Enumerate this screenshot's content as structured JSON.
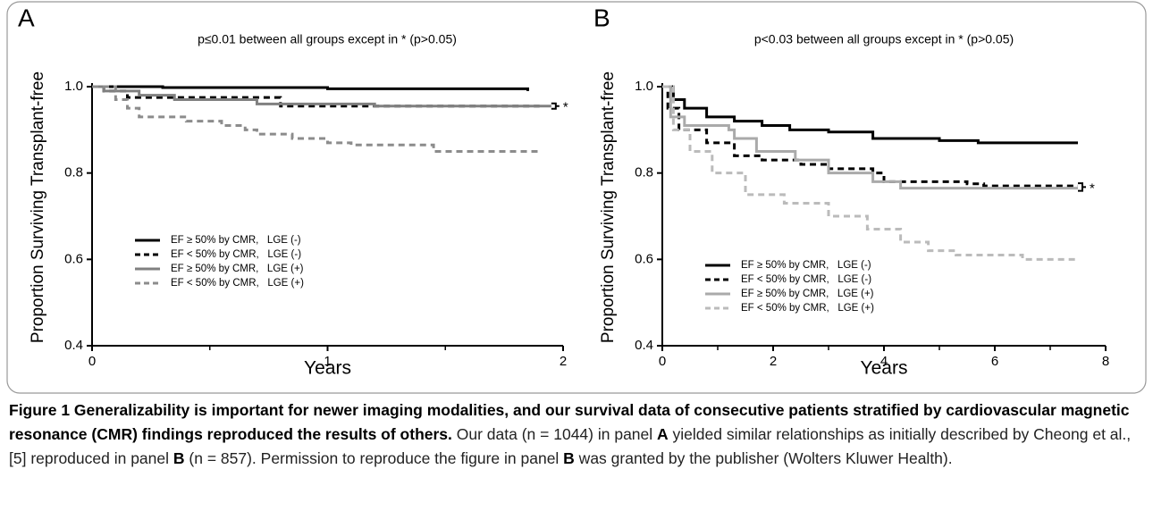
{
  "chart_data": [
    {
      "type": "line",
      "panel": "A",
      "title": "p≤0.01 between all groups except in * (p>0.05)",
      "y_label": "Proportion Surviving Transplant-free",
      "x_label": "Years",
      "xlim": [
        0,
        2
      ],
      "xticks": [
        0,
        1,
        2
      ],
      "xminor_ticks": [
        0.5,
        1.5
      ],
      "ylim": [
        0.4,
        1.0
      ],
      "yticks": [
        0.4,
        0.6,
        0.8,
        {
          "value": 1.0,
          "label": "1.0"
        }
      ],
      "step": true,
      "legend": "center-left",
      "annotation": "*",
      "series": [
        {
          "name": "EF ≥ 50% by CMR,   LGE (-)",
          "color": "#000000",
          "dashed": false,
          "x": [
            0,
            0.3,
            1.0,
            1.85
          ],
          "values": [
            1,
            0.998,
            0.995,
            0.99
          ]
        },
        {
          "name": "EF < 50% by CMR,   LGE (-)",
          "color": "#000000",
          "dashed": true,
          "x": [
            0,
            0.05,
            0.15,
            0.8,
            1.9
          ],
          "values": [
            1,
            0.99,
            0.975,
            0.955,
            0.955
          ]
        },
        {
          "name": "EF ≥ 50% by CMR,   LGE (+)",
          "color": "#808080",
          "dashed": false,
          "x": [
            0,
            0.05,
            0.2,
            0.35,
            0.7,
            1.2,
            1.95
          ],
          "values": [
            1,
            0.99,
            0.98,
            0.97,
            0.96,
            0.955,
            0.955
          ]
        },
        {
          "name": "EF < 50% by CMR,   LGE (+)",
          "color": "#8c8c8c",
          "dashed": true,
          "x": [
            0,
            0.1,
            0.15,
            0.2,
            0.4,
            0.55,
            0.65,
            0.7,
            0.85,
            1.0,
            1.1,
            1.45,
            1.9
          ],
          "values": [
            1,
            0.97,
            0.95,
            0.93,
            0.92,
            0.91,
            0.9,
            0.89,
            0.88,
            0.87,
            0.865,
            0.85,
            0.85
          ]
        }
      ]
    },
    {
      "type": "line",
      "panel": "B",
      "title": "p<0.03 between all groups except in * (p>0.05)",
      "y_label": "Proportion Surviving Transplant-free",
      "x_label": "Years",
      "xlim": [
        0,
        8
      ],
      "xticks": [
        0,
        2,
        4,
        6,
        8
      ],
      "xminor_ticks": [
        1,
        3,
        5,
        7
      ],
      "ylim": [
        0.4,
        1.0
      ],
      "yticks": [
        0.4,
        0.6,
        0.8,
        {
          "value": 1.0,
          "label": "1.0"
        }
      ],
      "step": true,
      "legend": "lower-left",
      "annotation": "*",
      "series": [
        {
          "name": "EF ≥ 50% by CMR,   LGE (-)",
          "color": "#000000",
          "dashed": false,
          "x": [
            0,
            0.2,
            0.4,
            0.8,
            1.3,
            1.8,
            2.3,
            3,
            3.8,
            5,
            5.7,
            7.5
          ],
          "values": [
            1,
            0.97,
            0.95,
            0.93,
            0.92,
            0.91,
            0.9,
            0.895,
            0.88,
            0.875,
            0.87,
            0.87
          ]
        },
        {
          "name": "EF < 50% by CMR,   LGE (-)",
          "color": "#000000",
          "dashed": true,
          "x": [
            0,
            0.1,
            0.3,
            0.8,
            1.3,
            1.8,
            2.5,
            3,
            3.8,
            4,
            5.5,
            5.8,
            7.5
          ],
          "values": [
            1,
            0.95,
            0.9,
            0.87,
            0.84,
            0.83,
            0.82,
            0.81,
            0.8,
            0.78,
            0.775,
            0.77,
            0.77
          ]
        },
        {
          "name": "EF ≥ 50% by CMR,   LGE (+)",
          "color": "#aaaaaa",
          "dashed": false,
          "x": [
            0,
            0.15,
            0.4,
            1.2,
            1.3,
            1.7,
            2.4,
            3,
            3.8,
            4.3,
            7.5
          ],
          "values": [
            1,
            0.93,
            0.91,
            0.9,
            0.88,
            0.85,
            0.83,
            0.8,
            0.78,
            0.765,
            0.765
          ]
        },
        {
          "name": "EF < 50% by CMR,   LGE (+)",
          "color": "#bbbbbb",
          "dashed": true,
          "x": [
            0,
            0.2,
            0.5,
            0.9,
            1.5,
            2.2,
            3,
            3.7,
            4.3,
            4.8,
            5.3,
            6.5,
            7.5
          ],
          "values": [
            1,
            0.9,
            0.85,
            0.8,
            0.75,
            0.73,
            0.7,
            0.67,
            0.64,
            0.62,
            0.61,
            0.6,
            0.6
          ]
        }
      ]
    }
  ],
  "caption": [
    {
      "text": "Figure 1 Generalizability is important for newer imaging modalities, and our survival data of consecutive patients stratified by cardiovascular magnetic resonance (CMR) findings reproduced the results of others.",
      "bold": true
    },
    {
      "text": " Our data (n = 1044) in panel ",
      "bold": false
    },
    {
      "text": "A",
      "bold": true
    },
    {
      "text": " yielded similar relationships as initially described by Cheong et al., [5] reproduced in panel ",
      "bold": false
    },
    {
      "text": "B",
      "bold": true
    },
    {
      "text": " (n = 857). Permission to reproduce the figure in panel ",
      "bold": false
    },
    {
      "text": "B",
      "bold": true
    },
    {
      "text": " was granted by the publisher (Wolters Kluwer Health).",
      "bold": false
    }
  ]
}
